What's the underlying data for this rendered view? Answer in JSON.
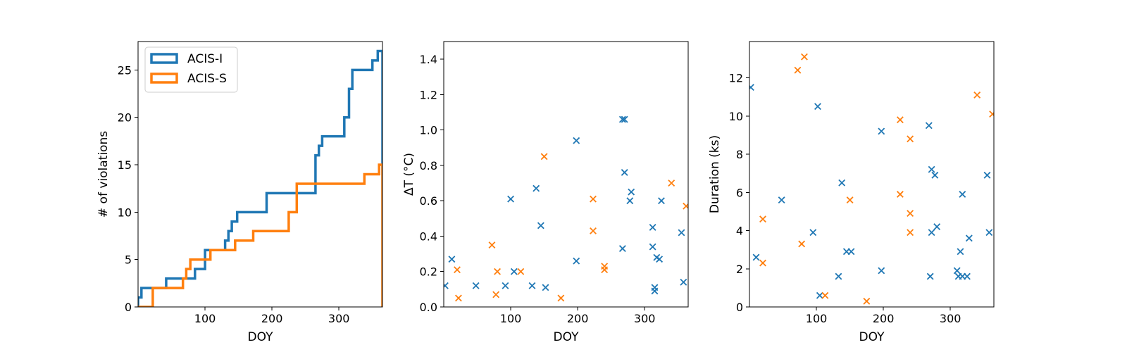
{
  "chart_data": [
    {
      "type": "line",
      "step": true,
      "xlabel": "DOY",
      "ylabel": "# of violations",
      "xlim": [
        0,
        365
      ],
      "ylim": [
        0,
        28
      ],
      "xticks": [
        100,
        200,
        300
      ],
      "yticks": [
        0,
        5,
        10,
        15,
        20,
        25
      ],
      "legend": {
        "placement": "top-left",
        "frame": true
      },
      "series": [
        {
          "name": "ACIS-I",
          "color": "#1f77b4",
          "points": [
            [
              0,
              0
            ],
            [
              0,
              1
            ],
            [
              5,
              1
            ],
            [
              5,
              2
            ],
            [
              42,
              2
            ],
            [
              42,
              3
            ],
            [
              62,
              3
            ],
            [
              62,
              3
            ],
            [
              85,
              3
            ],
            [
              85,
              4
            ],
            [
              100,
              4
            ],
            [
              100,
              6
            ],
            [
              130,
              6
            ],
            [
              130,
              7
            ],
            [
              135,
              7
            ],
            [
              135,
              8
            ],
            [
              140,
              8
            ],
            [
              140,
              9
            ],
            [
              148,
              9
            ],
            [
              148,
              10
            ],
            [
              192,
              10
            ],
            [
              192,
              12
            ],
            [
              265,
              12
            ],
            [
              265,
              16
            ],
            [
              270,
              16
            ],
            [
              270,
              17
            ],
            [
              275,
              17
            ],
            [
              275,
              18
            ],
            [
              308,
              18
            ],
            [
              308,
              20
            ],
            [
              315,
              20
            ],
            [
              315,
              23
            ],
            [
              320,
              23
            ],
            [
              320,
              25
            ],
            [
              350,
              25
            ],
            [
              350,
              26
            ],
            [
              358,
              26
            ],
            [
              358,
              27
            ],
            [
              365,
              27
            ],
            [
              365,
              0
            ]
          ]
        },
        {
          "name": "ACIS-S",
          "color": "#ff7f0e",
          "points": [
            [
              0,
              0
            ],
            [
              22,
              0
            ],
            [
              22,
              2
            ],
            [
              67,
              2
            ],
            [
              67,
              3
            ],
            [
              72,
              3
            ],
            [
              72,
              4
            ],
            [
              78,
              4
            ],
            [
              78,
              5
            ],
            [
              108,
              5
            ],
            [
              108,
              6
            ],
            [
              145,
              6
            ],
            [
              145,
              7
            ],
            [
              172,
              7
            ],
            [
              172,
              8
            ],
            [
              225,
              8
            ],
            [
              225,
              10
            ],
            [
              237,
              10
            ],
            [
              237,
              13
            ],
            [
              338,
              13
            ],
            [
              338,
              14
            ],
            [
              360,
              14
            ],
            [
              360,
              15
            ],
            [
              365,
              15
            ],
            [
              365,
              0
            ]
          ]
        }
      ]
    },
    {
      "type": "scatter",
      "xlabel": "DOY",
      "ylabel": "ΔT (°C)",
      "xlim": [
        0,
        365
      ],
      "ylim": [
        0,
        1.5
      ],
      "xticks": [
        100,
        200,
        300
      ],
      "yticks": [
        0.0,
        0.2,
        0.4,
        0.6,
        0.8,
        1.0,
        1.2,
        1.4
      ],
      "ytick_labels": [
        "0.0",
        "0.2",
        "0.4",
        "0.6",
        "0.8",
        "1.0",
        "1.2",
        "1.4"
      ],
      "series": [
        {
          "name": "ACIS-I",
          "color": "#1f77b4",
          "points": [
            [
              2,
              0.12
            ],
            [
              12,
              0.27
            ],
            [
              48,
              0.12
            ],
            [
              92,
              0.12
            ],
            [
              100,
              0.61
            ],
            [
              105,
              0.2
            ],
            [
              132,
              0.12
            ],
            [
              138,
              0.67
            ],
            [
              145,
              0.46
            ],
            [
              152,
              0.11
            ],
            [
              198,
              0.94
            ],
            [
              198,
              0.26
            ],
            [
              267,
              1.06
            ],
            [
              270,
              1.06
            ],
            [
              270,
              0.76
            ],
            [
              267,
              0.33
            ],
            [
              278,
              0.6
            ],
            [
              280,
              0.65
            ],
            [
              312,
              0.45
            ],
            [
              312,
              0.34
            ],
            [
              315,
              0.11
            ],
            [
              315,
              0.09
            ],
            [
              318,
              0.28
            ],
            [
              322,
              0.27
            ],
            [
              325,
              0.6
            ],
            [
              355,
              0.42
            ],
            [
              358,
              0.14
            ]
          ]
        },
        {
          "name": "ACIS-S",
          "color": "#ff7f0e",
          "points": [
            [
              20,
              0.21
            ],
            [
              22,
              0.05
            ],
            [
              72,
              0.35
            ],
            [
              78,
              0.07
            ],
            [
              80,
              0.2
            ],
            [
              115,
              0.2
            ],
            [
              150,
              0.85
            ],
            [
              175,
              0.05
            ],
            [
              223,
              0.61
            ],
            [
              223,
              0.43
            ],
            [
              240,
              0.21
            ],
            [
              240,
              0.23
            ],
            [
              340,
              0.7
            ],
            [
              362,
              0.57
            ]
          ]
        }
      ]
    },
    {
      "type": "scatter",
      "xlabel": "DOY",
      "ylabel": "Duration (ks)",
      "xlim": [
        0,
        365
      ],
      "ylim": [
        0,
        13.9
      ],
      "xticks": [
        100,
        200,
        300
      ],
      "yticks": [
        0,
        2,
        4,
        6,
        8,
        10,
        12
      ],
      "series": [
        {
          "name": "ACIS-I",
          "color": "#1f77b4",
          "points": [
            [
              2,
              11.5
            ],
            [
              10,
              2.6
            ],
            [
              48,
              5.6
            ],
            [
              95,
              3.9
            ],
            [
              102,
              10.5
            ],
            [
              105,
              0.6
            ],
            [
              133,
              1.6
            ],
            [
              138,
              6.5
            ],
            [
              145,
              2.9
            ],
            [
              152,
              2.9
            ],
            [
              197,
              9.2
            ],
            [
              197,
              1.9
            ],
            [
              268,
              9.5
            ],
            [
              270,
              1.6
            ],
            [
              272,
              3.9
            ],
            [
              272,
              7.2
            ],
            [
              277,
              6.9
            ],
            [
              280,
              4.2
            ],
            [
              310,
              1.9
            ],
            [
              312,
              1.6
            ],
            [
              315,
              2.9
            ],
            [
              318,
              5.9
            ],
            [
              318,
              1.6
            ],
            [
              325,
              1.6
            ],
            [
              328,
              3.6
            ],
            [
              355,
              6.9
            ],
            [
              358,
              3.9
            ]
          ]
        },
        {
          "name": "ACIS-S",
          "color": "#ff7f0e",
          "points": [
            [
              20,
              4.6
            ],
            [
              20,
              2.3
            ],
            [
              72,
              12.4
            ],
            [
              78,
              3.3
            ],
            [
              82,
              13.1
            ],
            [
              113,
              0.6
            ],
            [
              150,
              5.6
            ],
            [
              175,
              0.3
            ],
            [
              225,
              9.8
            ],
            [
              225,
              5.9
            ],
            [
              240,
              8.8
            ],
            [
              240,
              4.9
            ],
            [
              240,
              3.9
            ],
            [
              340,
              11.1
            ],
            [
              363,
              10.1
            ]
          ]
        }
      ]
    }
  ]
}
